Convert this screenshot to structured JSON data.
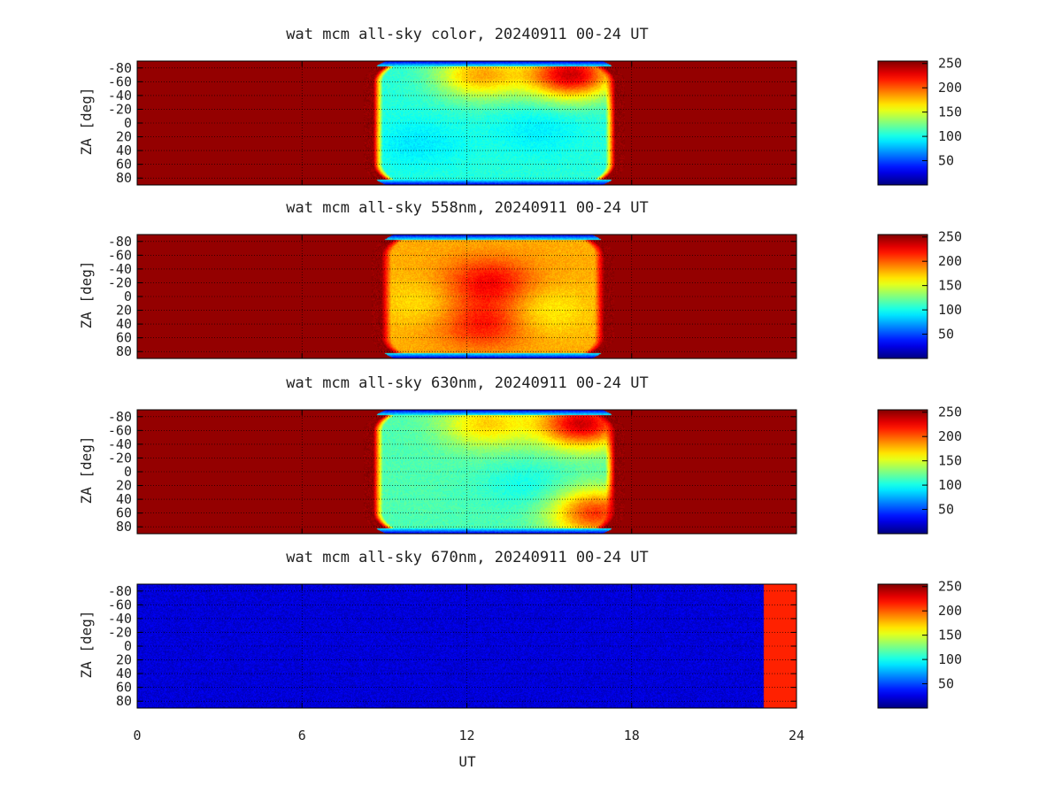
{
  "colors": {
    "jet_low": "#00007f",
    "jet_high": "#7f0000",
    "frame": "#000000",
    "grid": "#000000"
  },
  "x_axis": {
    "label": "UT",
    "range": [
      0,
      24
    ],
    "ticks": [
      0,
      6,
      12,
      18,
      24
    ],
    "tick_labels": [
      "0",
      "6",
      "12",
      "18",
      "24"
    ]
  },
  "y_axis": {
    "label": "ZA [deg]",
    "range": [
      -90,
      90
    ],
    "ticks": [
      -80,
      -60,
      -40,
      -20,
      0,
      20,
      40,
      60,
      80
    ],
    "tick_labels": [
      "-80",
      "-60",
      "-40",
      "-20",
      "0",
      "20",
      "40",
      "60",
      "80"
    ],
    "grid": true
  },
  "colorbar": {
    "range": [
      0,
      255
    ],
    "ticks": [
      50,
      100,
      150,
      200,
      250
    ],
    "tick_labels": [
      "50",
      "100",
      "150",
      "200",
      "250"
    ]
  },
  "chart_data": [
    {
      "type": "heatmap",
      "title": "wat mcm all-sky color, 20240911 00-24 UT",
      "x_range": [
        0,
        24
      ],
      "y_range": [
        -90,
        90
      ],
      "z_range": [
        0,
        255
      ],
      "night_start_ut": 8.6,
      "night_end_ut": 17.4,
      "daylight_value": 250,
      "night_value": 105,
      "edge_value": 40,
      "blobs": [
        {
          "x": 12.5,
          "y": -70,
          "z": 180
        },
        {
          "x": 15.8,
          "y": -70,
          "z": 235
        },
        {
          "x": 10.2,
          "y": 30,
          "z": 90
        },
        {
          "x": 14.6,
          "y": 10,
          "z": 92
        }
      ]
    },
    {
      "type": "heatmap",
      "title": "wat mcm all-sky 558nm, 20240911 00-24 UT",
      "x_range": [
        0,
        24
      ],
      "y_range": [
        -90,
        90
      ],
      "z_range": [
        0,
        255
      ],
      "night_start_ut": 8.9,
      "night_end_ut": 17.0,
      "daylight_value": 250,
      "night_value": 180,
      "edge_value": 40,
      "blobs": [
        {
          "x": 12.8,
          "y": -20,
          "z": 225
        },
        {
          "x": 12.6,
          "y": 40,
          "z": 220
        },
        {
          "x": 10.5,
          "y": 10,
          "z": 165
        },
        {
          "x": 14.8,
          "y": 20,
          "z": 160
        }
      ]
    },
    {
      "type": "heatmap",
      "title": "wat mcm all-sky 630nm, 20240911 00-24 UT",
      "x_range": [
        0,
        24
      ],
      "y_range": [
        -90,
        90
      ],
      "z_range": [
        0,
        255
      ],
      "night_start_ut": 8.6,
      "night_end_ut": 17.4,
      "daylight_value": 250,
      "night_value": 115,
      "edge_value": 40,
      "blobs": [
        {
          "x": 12.7,
          "y": -70,
          "z": 170
        },
        {
          "x": 16.2,
          "y": -70,
          "z": 235
        },
        {
          "x": 16.7,
          "y": 60,
          "z": 210
        },
        {
          "x": 14.2,
          "y": 20,
          "z": 100
        }
      ]
    },
    {
      "type": "heatmap",
      "title": "wat mcm all-sky 670nm, 20240911 00-24 UT",
      "x_range": [
        0,
        24
      ],
      "y_range": [
        -90,
        90
      ],
      "z_range": [
        0,
        255
      ],
      "background_value": 22,
      "step_ut": 22.8,
      "step_value": 215
    }
  ]
}
